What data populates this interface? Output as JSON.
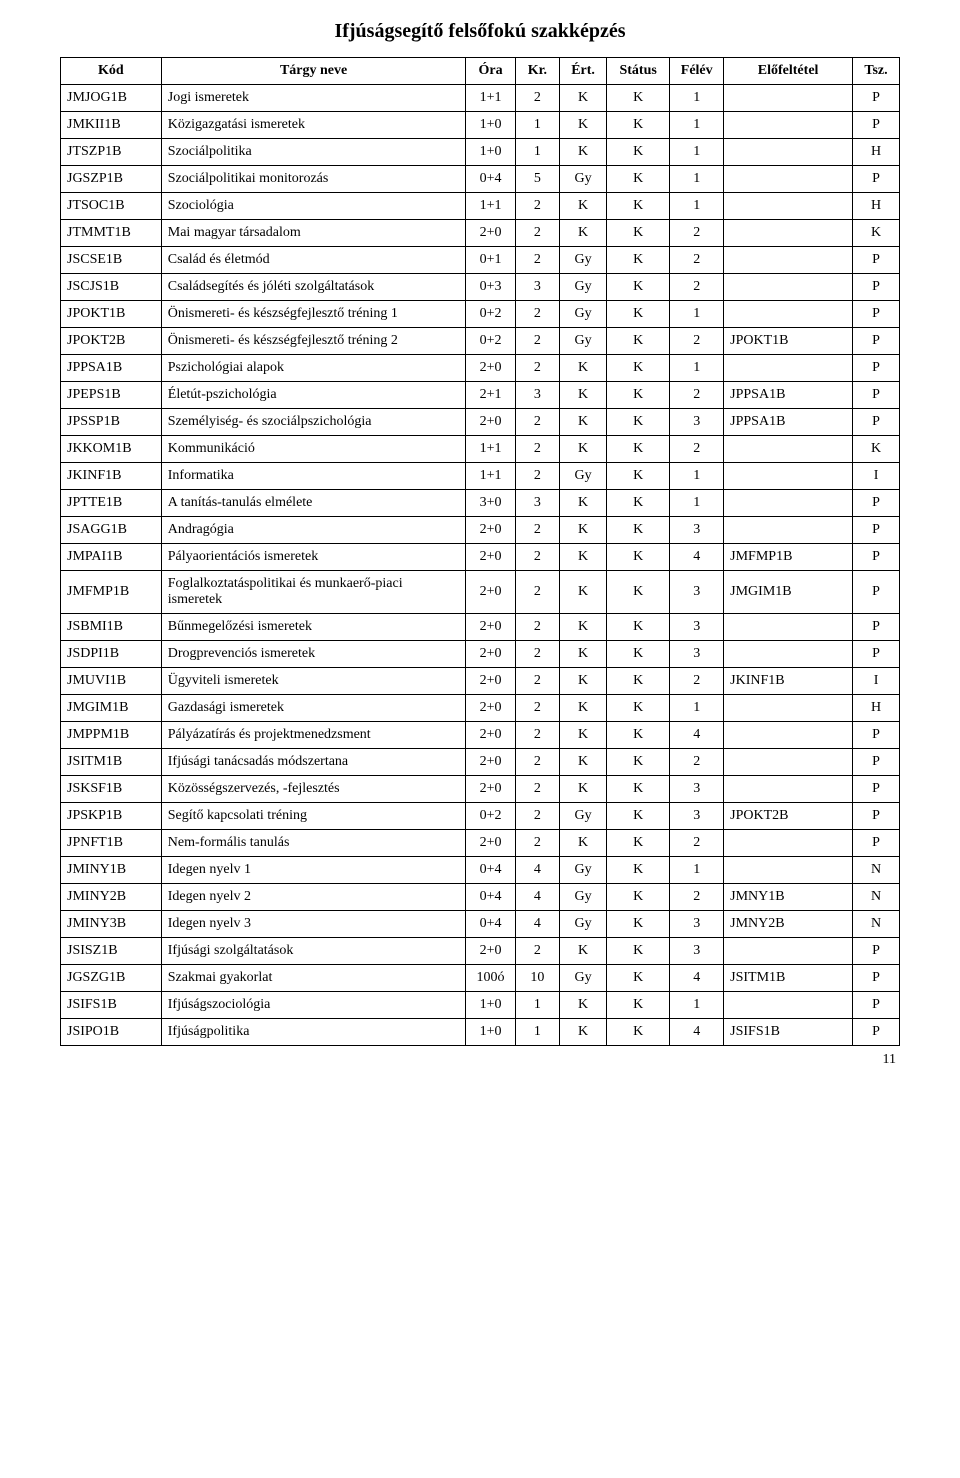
{
  "title": "Ifjúságsegítő felsőfokú szakképzés",
  "page_number": "11",
  "columns": [
    {
      "key": "kod",
      "label": "Kód",
      "class": "col-kod"
    },
    {
      "key": "targy",
      "label": "Tárgy neve",
      "class": "col-targy"
    },
    {
      "key": "ora",
      "label": "Óra",
      "class": "col-ora"
    },
    {
      "key": "kr",
      "label": "Kr.",
      "class": "col-kr"
    },
    {
      "key": "ert",
      "label": "Ért.",
      "class": "col-ert"
    },
    {
      "key": "stat",
      "label": "Státus",
      "class": "col-stat"
    },
    {
      "key": "felev",
      "label": "Félév",
      "class": "col-felev"
    },
    {
      "key": "elo",
      "label": "Előfeltétel",
      "class": "col-elo"
    },
    {
      "key": "tsz",
      "label": "Tsz.",
      "class": "col-tsz"
    }
  ],
  "rows": [
    [
      "JMJOG1B",
      "Jogi ismeretek",
      "1+1",
      "2",
      "K",
      "K",
      "1",
      "",
      "P"
    ],
    [
      "JMKII1B",
      "Közigazgatási ismeretek",
      "1+0",
      "1",
      "K",
      "K",
      "1",
      "",
      "P"
    ],
    [
      "JTSZP1B",
      "Szociálpolitika",
      "1+0",
      "1",
      "K",
      "K",
      "1",
      "",
      "H"
    ],
    [
      "JGSZP1B",
      "Szociálpolitikai monitorozás",
      "0+4",
      "5",
      "Gy",
      "K",
      "1",
      "",
      "P"
    ],
    [
      "JTSOC1B",
      "Szociológia",
      "1+1",
      "2",
      "K",
      "K",
      "1",
      "",
      "H"
    ],
    [
      "JTMMT1B",
      "Mai magyar társadalom",
      "2+0",
      "2",
      "K",
      "K",
      "2",
      "",
      "K"
    ],
    [
      "JSCSE1B",
      "Család és életmód",
      "0+1",
      "2",
      "Gy",
      "K",
      "2",
      "",
      "P"
    ],
    [
      "JSCJS1B",
      "Családsegítés és jóléti szolgáltatások",
      "0+3",
      "3",
      "Gy",
      "K",
      "2",
      "",
      "P"
    ],
    [
      "JPOKT1B",
      "Önismereti- és készségfejlesztő tréning 1",
      "0+2",
      "2",
      "Gy",
      "K",
      "1",
      "",
      "P"
    ],
    [
      "JPOKT2B",
      "Önismereti- és készségfejlesztő tréning 2",
      "0+2",
      "2",
      "Gy",
      "K",
      "2",
      "JPOKT1B",
      "P"
    ],
    [
      "JPPSA1B",
      "Pszichológiai alapok",
      "2+0",
      "2",
      "K",
      "K",
      "1",
      "",
      "P"
    ],
    [
      "JPEPS1B",
      "Életút-pszichológia",
      "2+1",
      "3",
      "K",
      "K",
      "2",
      "JPPSA1B",
      "P"
    ],
    [
      "JPSSP1B",
      "Személyiség- és szociálpszichológia",
      "2+0",
      "2",
      "K",
      "K",
      "3",
      "JPPSA1B",
      "P"
    ],
    [
      "JKKOM1B",
      "Kommunikáció",
      "1+1",
      "2",
      "K",
      "K",
      "2",
      "",
      "K"
    ],
    [
      "JKINF1B",
      "Informatika",
      "1+1",
      "2",
      "Gy",
      "K",
      "1",
      "",
      "I"
    ],
    [
      "JPTTE1B",
      "A tanítás-tanulás elmélete",
      "3+0",
      "3",
      "K",
      "K",
      "1",
      "",
      "P"
    ],
    [
      "JSAGG1B",
      "Andragógia",
      "2+0",
      "2",
      "K",
      "K",
      "3",
      "",
      "P"
    ],
    [
      "JMPAI1B",
      "Pályaorientációs ismeretek",
      "2+0",
      "2",
      "K",
      "K",
      "4",
      "JMFMP1B",
      "P"
    ],
    [
      "JMFMP1B",
      "Foglalkoztatáspolitikai és munkaerő-piaci ismeretek",
      "2+0",
      "2",
      "K",
      "K",
      "3",
      "JMGIM1B",
      "P"
    ],
    [
      "JSBMI1B",
      "Bűnmegelőzési ismeretek",
      "2+0",
      "2",
      "K",
      "K",
      "3",
      "",
      "P"
    ],
    [
      "JSDPI1B",
      "Drogprevenciós ismeretek",
      "2+0",
      "2",
      "K",
      "K",
      "3",
      "",
      "P"
    ],
    [
      "JMUVI1B",
      "Ügyviteli ismeretek",
      "2+0",
      "2",
      "K",
      "K",
      "2",
      "JKINF1B",
      "I"
    ],
    [
      "JMGIM1B",
      "Gazdasági ismeretek",
      "2+0",
      "2",
      "K",
      "K",
      "1",
      "",
      "H"
    ],
    [
      "JMPPM1B",
      "Pályázatírás és projektmenedzsment",
      "2+0",
      "2",
      "K",
      "K",
      "4",
      "",
      "P"
    ],
    [
      "JSITM1B",
      "Ifjúsági tanácsadás módszertana",
      "2+0",
      "2",
      "K",
      "K",
      "2",
      "",
      "P"
    ],
    [
      "JSKSF1B",
      "Közösségszervezés, -fejlesztés",
      "2+0",
      "2",
      "K",
      "K",
      "3",
      "",
      "P"
    ],
    [
      "JPSKP1B",
      "Segítő kapcsolati tréning",
      "0+2",
      "2",
      "Gy",
      "K",
      "3",
      "JPOKT2B",
      "P"
    ],
    [
      "JPNFT1B",
      "Nem-formális tanulás",
      "2+0",
      "2",
      "K",
      "K",
      "2",
      "",
      "P"
    ],
    [
      "JMINY1B",
      "Idegen nyelv 1",
      "0+4",
      "4",
      "Gy",
      "K",
      "1",
      "",
      "N"
    ],
    [
      "JMINY2B",
      "Idegen nyelv 2",
      "0+4",
      "4",
      "Gy",
      "K",
      "2",
      "JMNY1B",
      "N"
    ],
    [
      "JMINY3B",
      "Idegen nyelv 3",
      "0+4",
      "4",
      "Gy",
      "K",
      "3",
      "JMNY2B",
      "N"
    ],
    [
      "JSISZ1B",
      "Ifjúsági szolgáltatások",
      "2+0",
      "2",
      "K",
      "K",
      "3",
      "",
      "P"
    ],
    [
      "JGSZG1B",
      "Szakmai gyakorlat",
      "100ó",
      "10",
      "Gy",
      "K",
      "4",
      "JSITM1B",
      "P"
    ],
    [
      "JSIFS1B",
      "Ifjúságszociológia",
      "1+0",
      "1",
      "K",
      "K",
      "1",
      "",
      "P"
    ],
    [
      "JSIPO1B",
      "Ifjúságpolitika",
      "1+0",
      "1",
      "K",
      "K",
      "4",
      "JSIFS1B",
      "P"
    ]
  ],
  "cell_align": [
    "l",
    "l",
    "c",
    "c",
    "c",
    "c",
    "c",
    "l",
    "c"
  ]
}
